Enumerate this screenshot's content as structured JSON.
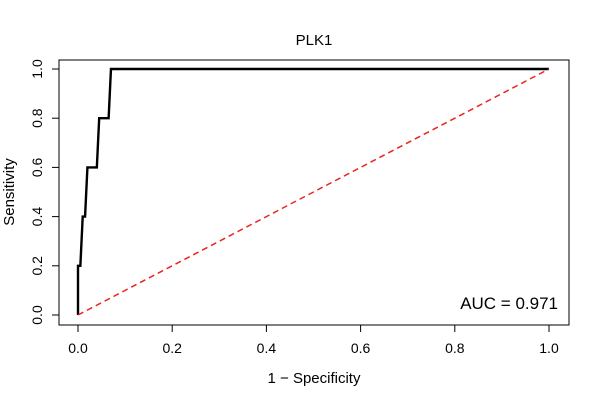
{
  "chart_data": {
    "type": "line",
    "title": "PLK1",
    "xlabel": "1 − Specificity",
    "ylabel": "Sensitivity",
    "xlim": [
      0,
      1
    ],
    "ylim": [
      0,
      1
    ],
    "x_ticks": [
      "0.0",
      "0.2",
      "0.4",
      "0.6",
      "0.8",
      "1.0"
    ],
    "y_ticks": [
      "0.0",
      "0.2",
      "0.4",
      "0.6",
      "0.8",
      "1.0"
    ],
    "grid": false,
    "legend": "none",
    "annotation": "AUC = 0.971",
    "series": [
      {
        "color": "#000000",
        "style": "solid",
        "points": [
          [
            0.0,
            0.0
          ],
          [
            0.0,
            0.2
          ],
          [
            0.005,
            0.2
          ],
          [
            0.01,
            0.4
          ],
          [
            0.015,
            0.4
          ],
          [
            0.02,
            0.6
          ],
          [
            0.04,
            0.6
          ],
          [
            0.045,
            0.8
          ],
          [
            0.065,
            0.8
          ],
          [
            0.07,
            1.0
          ],
          [
            1.0,
            1.0
          ]
        ]
      },
      {
        "color": "#e8261e",
        "style": "dashed",
        "points": [
          [
            0.0,
            0.0
          ],
          [
            1.0,
            1.0
          ]
        ]
      }
    ]
  }
}
